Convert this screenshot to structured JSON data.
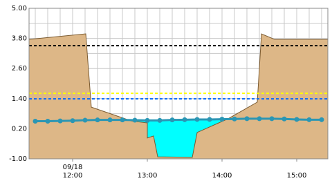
{
  "chart_data": {
    "type": "line",
    "date_label": "09/18",
    "xlim": [
      11.4167,
      15.4167
    ],
    "ylim": [
      -1,
      5
    ],
    "yticks": [
      {
        "value": 5,
        "label": "5.00"
      },
      {
        "value": 3.8,
        "label": "3.80"
      },
      {
        "value": 2.6,
        "label": "2.60"
      },
      {
        "value": 1.4,
        "label": "1.40"
      },
      {
        "value": 0.2,
        "label": "0.20"
      },
      {
        "value": -1,
        "label": "-1.00"
      }
    ],
    "xticks": [
      {
        "value": 12,
        "label": "12:00"
      },
      {
        "value": 13,
        "label": "13:00"
      },
      {
        "value": 14,
        "label": "14:00"
      },
      {
        "value": 15,
        "label": "15:00"
      }
    ],
    "ygrid": [
      4.4,
      3.2,
      2.0,
      0.8,
      -0.4
    ],
    "xgrid": [
      11.5,
      11.6667,
      11.8333,
      12,
      12.1667,
      12.3333,
      12.5,
      12.6667,
      12.8333,
      13,
      13.1667,
      13.3333,
      13.5,
      13.6667,
      13.8333,
      14,
      14.1667,
      14.3333,
      14.5,
      14.6667,
      14.8333,
      15,
      15.1667,
      15.3333
    ],
    "terrain": {
      "color": "#ddb787",
      "x": [
        11.4167,
        12.176,
        12.25,
        12.787,
        13.0,
        13.0,
        13.083,
        13.139,
        13.602,
        13.667,
        14.083,
        14.472,
        14.528,
        14.704,
        15.4167
      ],
      "y": [
        3.76,
        3.98,
        1.06,
        0.51,
        0.43,
        -0.17,
        -0.09,
        -0.92,
        -0.94,
        0.05,
        0.6,
        1.26,
        3.98,
        3.76,
        3.76
      ]
    },
    "water": {
      "color": "#00ffff",
      "level": 0.57,
      "x": [
        12.7,
        14.2
      ]
    },
    "thresholds": [
      {
        "color": "#000000",
        "value": 3.51
      },
      {
        "color": "#ffff00",
        "value": 1.61
      },
      {
        "color": "#0066ff",
        "value": 1.39
      }
    ],
    "series": [
      {
        "color": "#2a96b4",
        "x": [
          11.5,
          11.6667,
          11.8333,
          12,
          12.1667,
          12.3333,
          12.5,
          12.6667,
          12.8333,
          13,
          13.1667,
          13.3333,
          13.5,
          13.6667,
          13.8333,
          14,
          14.1667,
          14.3333,
          14.5,
          14.6667,
          14.8333,
          15,
          15.1667,
          15.3333
        ],
        "values": [
          0.5,
          0.5,
          0.51,
          0.52,
          0.54,
          0.55,
          0.55,
          0.55,
          0.54,
          0.53,
          0.53,
          0.55,
          0.56,
          0.57,
          0.57,
          0.58,
          0.59,
          0.6,
          0.6,
          0.6,
          0.59,
          0.57,
          0.56,
          0.56
        ]
      }
    ]
  }
}
